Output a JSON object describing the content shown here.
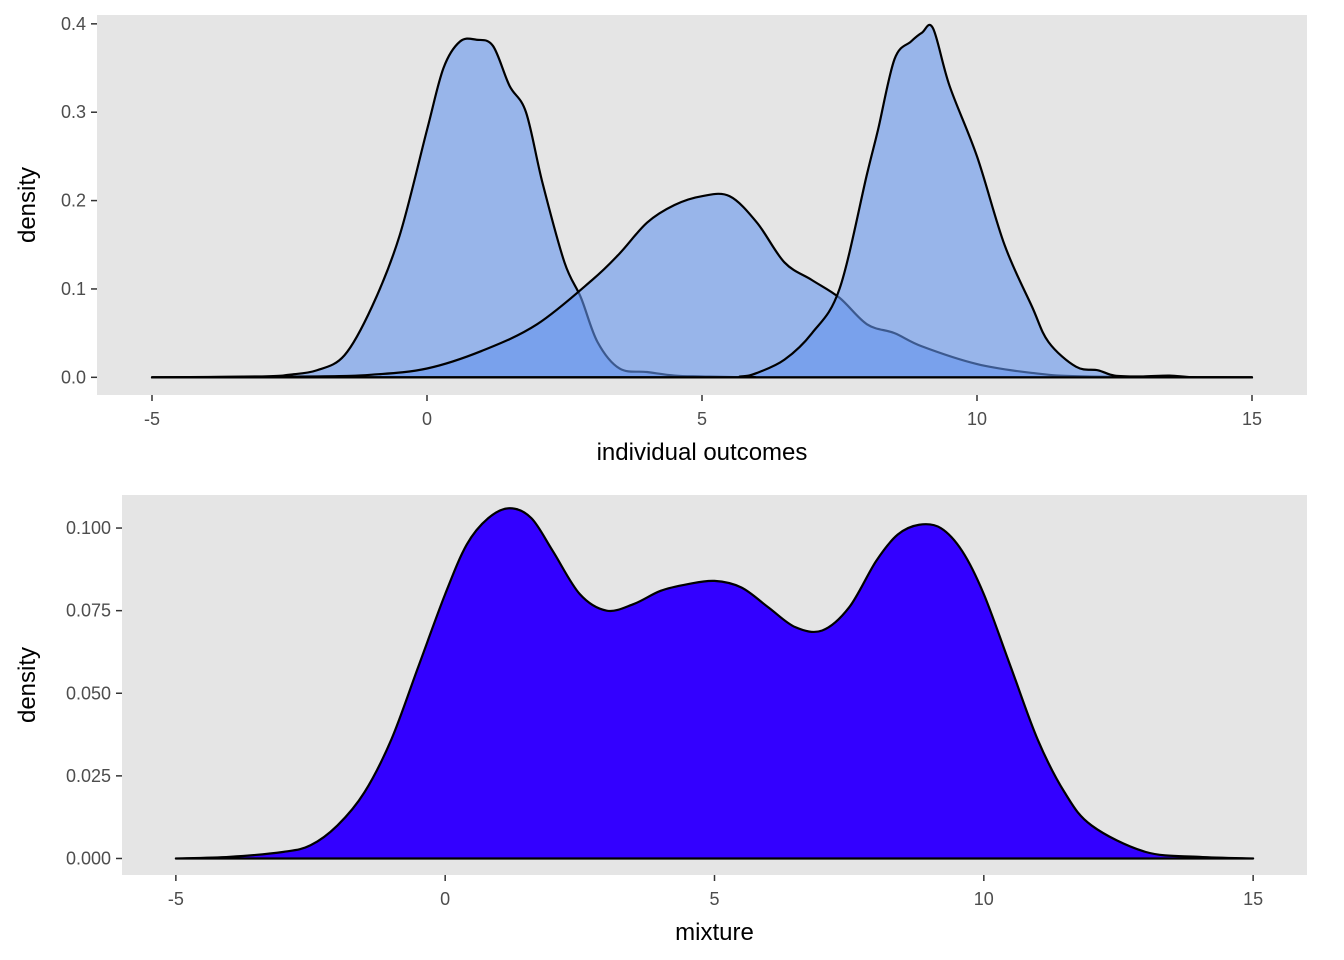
{
  "colors": {
    "page_background": "#ffffff",
    "panel_background": "#e5e5e5",
    "top_fill": "#6495ED",
    "bottom_fill": "#3300FF",
    "outline": "#000000",
    "tick_text": "#4d4d4d",
    "axis_text": "#000000"
  },
  "chart_data": [
    {
      "type": "area",
      "subtype": "overlapping density curves",
      "title": "",
      "xlabel": "individual outcomes",
      "ylabel": "density",
      "xlim": [
        -6,
        16
      ],
      "ylim": [
        -0.02,
        0.41
      ],
      "x_ticks": [
        -5,
        0,
        5,
        10,
        15
      ],
      "x_tick_labels": [
        "-5",
        "0",
        "5",
        "10",
        "15"
      ],
      "y_ticks": [
        0,
        0.1,
        0.2,
        0.3,
        0.4
      ],
      "y_tick_labels": [
        "0.0",
        "0.1",
        "0.2",
        "0.3",
        "0.4"
      ],
      "grid": false,
      "legend": "none",
      "fill_opacity": 0.6,
      "series": [
        {
          "x": [
            -5,
            -3,
            -2.5,
            -2,
            -1.5,
            -1,
            -0.5,
            0,
            0.3,
            0.6,
            0.9,
            1.2,
            1.5,
            1.8,
            2.1,
            2.5,
            2.8,
            3.1,
            3.5,
            4,
            4.5,
            5,
            6,
            8,
            10,
            15
          ],
          "y": [
            0,
            0.001,
            0.003,
            0.008,
            0.025,
            0.08,
            0.16,
            0.28,
            0.35,
            0.38,
            0.382,
            0.375,
            0.33,
            0.3,
            0.22,
            0.13,
            0.09,
            0.04,
            0.01,
            0.006,
            0.002,
            0.001,
            0,
            0,
            0,
            0
          ]
        },
        {
          "x": [
            -5,
            -2,
            -1,
            0,
            1,
            2,
            3,
            3.5,
            4,
            4.5,
            5,
            5.5,
            6,
            6.5,
            7,
            7.5,
            8,
            8.5,
            9,
            10,
            11,
            12,
            15
          ],
          "y": [
            0,
            0.001,
            0.003,
            0.01,
            0.03,
            0.06,
            0.11,
            0.14,
            0.175,
            0.195,
            0.205,
            0.205,
            0.175,
            0.13,
            0.11,
            0.09,
            0.06,
            0.05,
            0.035,
            0.015,
            0.005,
            0.001,
            0
          ]
        },
        {
          "x": [
            -5,
            5,
            5.7,
            6,
            6.5,
            7,
            7.5,
            8,
            8.2,
            8.5,
            8.8,
            9,
            9.2,
            9.5,
            10,
            10.5,
            11,
            11.3,
            11.8,
            12.2,
            12.5,
            13,
            13.5,
            14,
            15
          ],
          "y": [
            0,
            0,
            0.001,
            0.005,
            0.02,
            0.05,
            0.1,
            0.23,
            0.28,
            0.36,
            0.38,
            0.39,
            0.395,
            0.33,
            0.25,
            0.15,
            0.08,
            0.04,
            0.012,
            0.008,
            0.002,
            0.001,
            0.002,
            0,
            0
          ]
        }
      ]
    },
    {
      "type": "area",
      "subtype": "mixture density curve",
      "title": "",
      "xlabel": "mixture",
      "ylabel": "density",
      "xlim": [
        -6,
        16
      ],
      "ylim": [
        -0.005,
        0.11
      ],
      "x_ticks": [
        -5,
        0,
        5,
        10,
        15
      ],
      "x_tick_labels": [
        "-5",
        "0",
        "5",
        "10",
        "15"
      ],
      "y_ticks": [
        0,
        0.025,
        0.05,
        0.075,
        0.1
      ],
      "y_tick_labels": [
        "0.000",
        "0.025",
        "0.050",
        "0.075",
        "0.100"
      ],
      "grid": false,
      "legend": "none",
      "fill_opacity": 1,
      "series": [
        {
          "x": [
            -5,
            -4,
            -3,
            -2.5,
            -2,
            -1.5,
            -1,
            -0.5,
            0,
            0.4,
            0.8,
            1.2,
            1.6,
            2,
            2.5,
            3,
            3.5,
            4,
            4.5,
            5,
            5.5,
            6,
            6.5,
            7,
            7.5,
            8,
            8.4,
            8.8,
            9.2,
            9.6,
            10,
            10.5,
            11,
            11.5,
            12,
            13,
            14,
            15
          ],
          "y": [
            0,
            0.0005,
            0.002,
            0.004,
            0.01,
            0.02,
            0.036,
            0.058,
            0.08,
            0.095,
            0.103,
            0.106,
            0.103,
            0.093,
            0.08,
            0.075,
            0.077,
            0.081,
            0.083,
            0.084,
            0.082,
            0.076,
            0.07,
            0.069,
            0.076,
            0.09,
            0.098,
            0.101,
            0.1,
            0.093,
            0.08,
            0.058,
            0.036,
            0.02,
            0.01,
            0.002,
            0.0005,
            0
          ]
        }
      ]
    }
  ]
}
